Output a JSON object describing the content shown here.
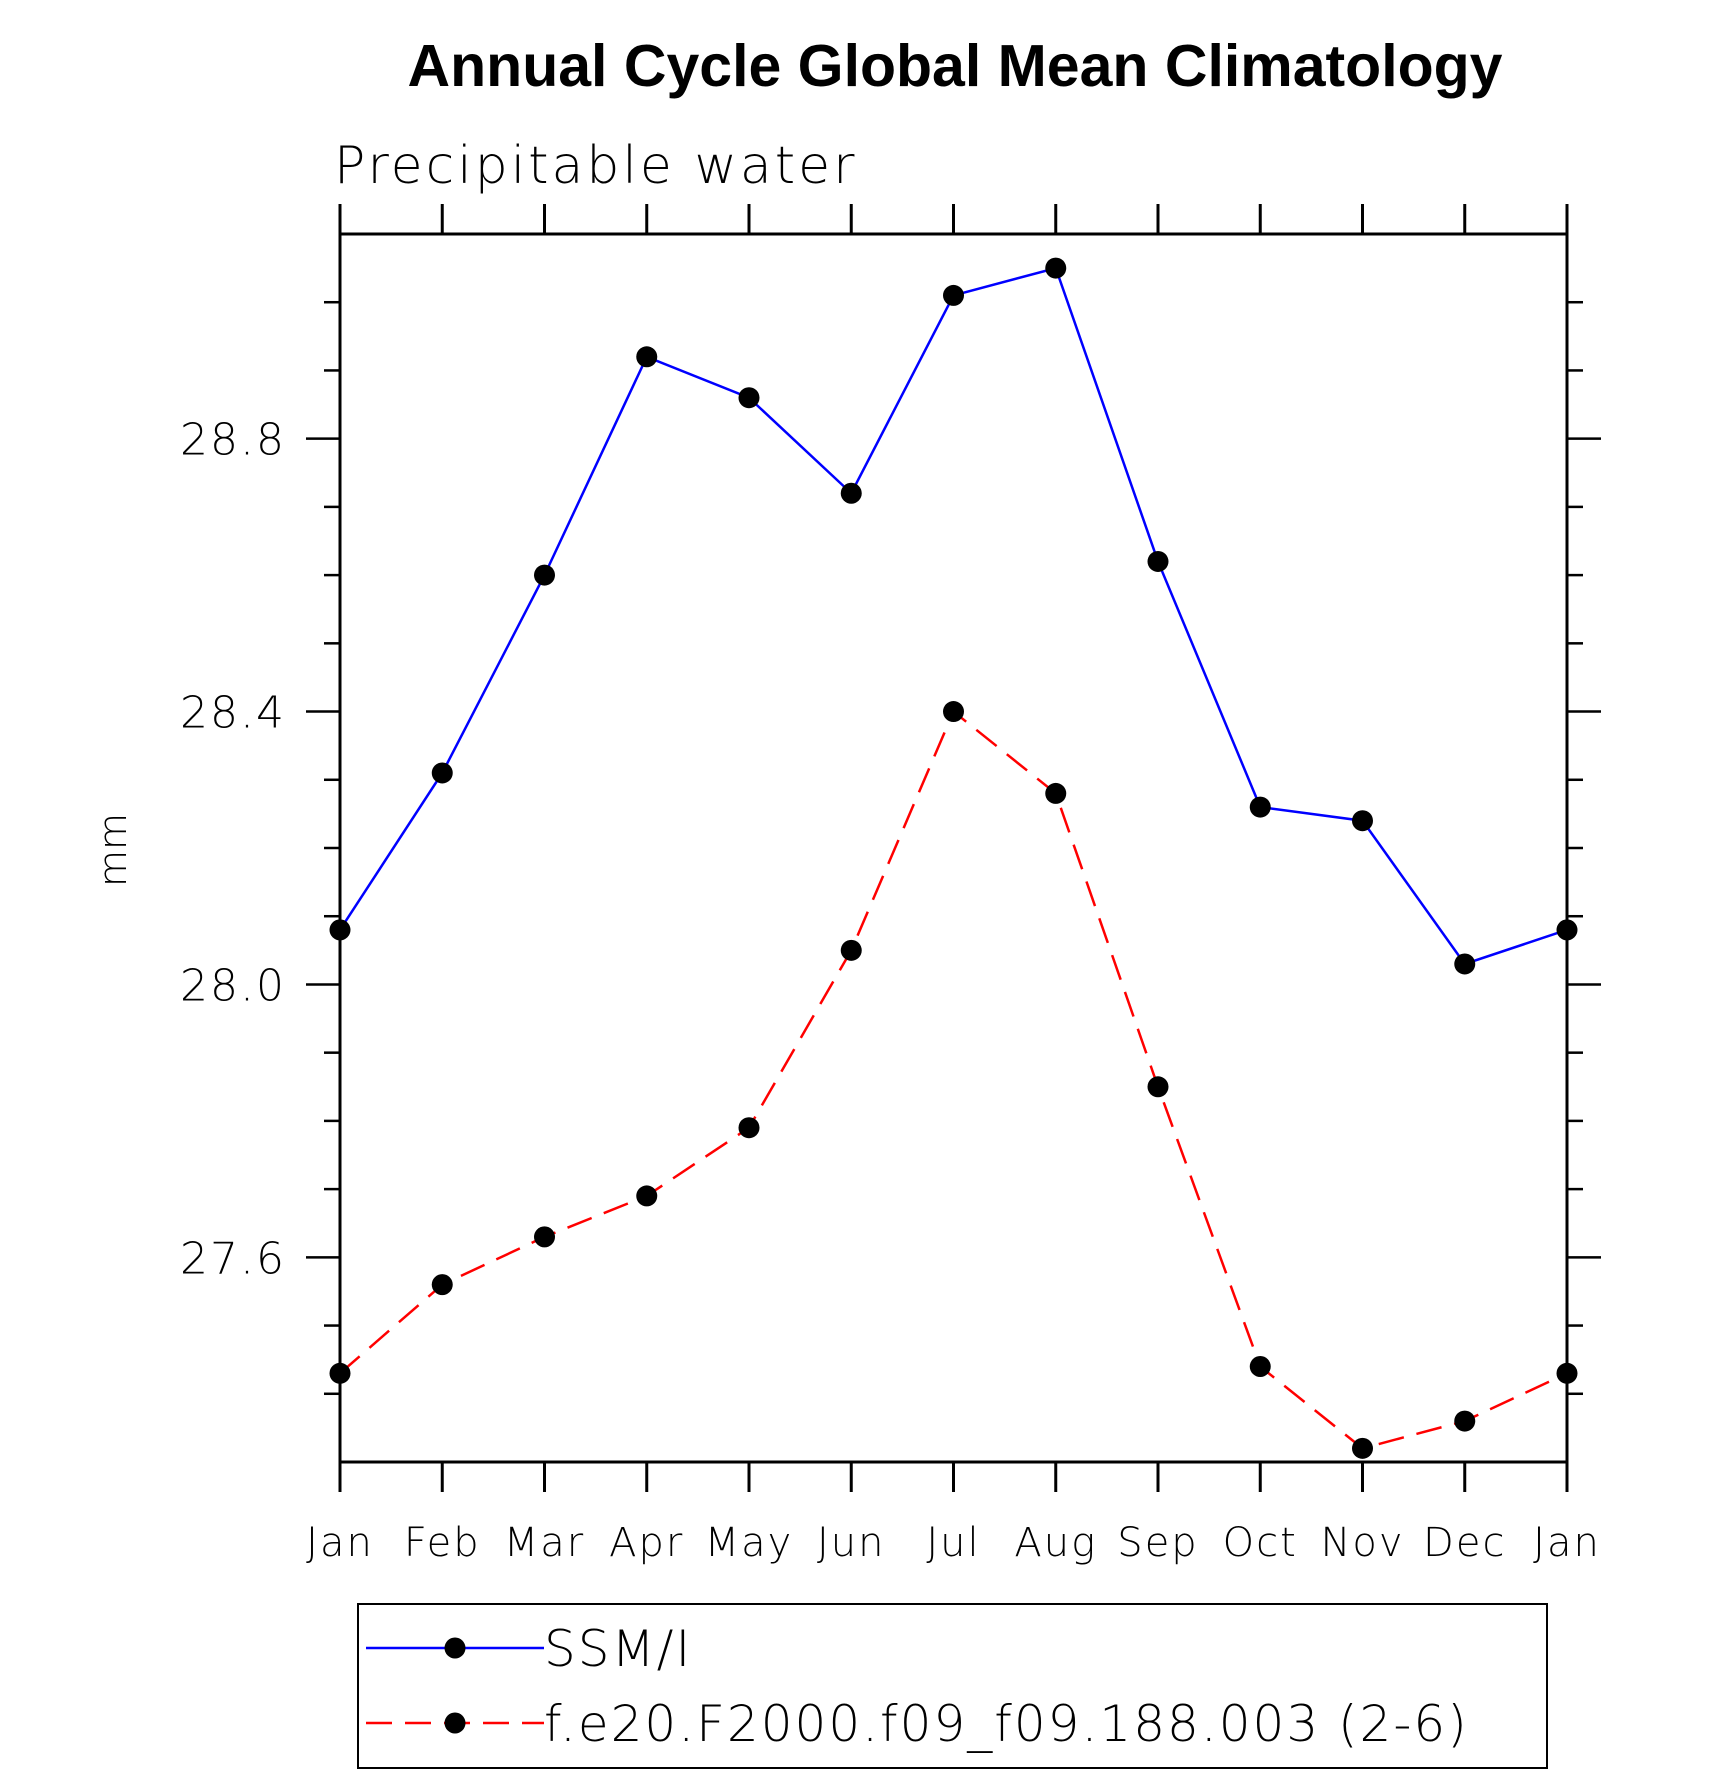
{
  "chart_data": {
    "type": "line",
    "title": "Annual Cycle Global Mean Climatology",
    "subtitle": "Precipitable water",
    "xlabel": "",
    "ylabel": "mm",
    "categories": [
      "Jan",
      "Feb",
      "Mar",
      "Apr",
      "May",
      "Jun",
      "Jul",
      "Aug",
      "Sep",
      "Oct",
      "Nov",
      "Dec",
      "Jan"
    ],
    "yticks": [
      "27.6",
      "28.0",
      "28.4",
      "28.8"
    ],
    "ylim": [
      27.3,
      29.1
    ],
    "grid": false,
    "legend_position": "bottom",
    "series": [
      {
        "name": "SSM/I",
        "color": "#0000ff",
        "line_style": "solid",
        "marker": "filled-circle",
        "values": [
          28.08,
          28.31,
          28.6,
          28.92,
          28.86,
          28.72,
          29.01,
          29.05,
          28.62,
          28.26,
          28.24,
          28.03,
          28.08
        ]
      },
      {
        "name": "f.e20.F2000.f09_f09.188.003 (2-6)",
        "color": "#ff0000",
        "line_style": "dashed",
        "marker": "filled-circle",
        "values": [
          27.43,
          27.56,
          27.63,
          27.69,
          27.79,
          28.05,
          28.4,
          28.28,
          27.85,
          27.44,
          27.32,
          27.36,
          27.43
        ]
      }
    ]
  }
}
